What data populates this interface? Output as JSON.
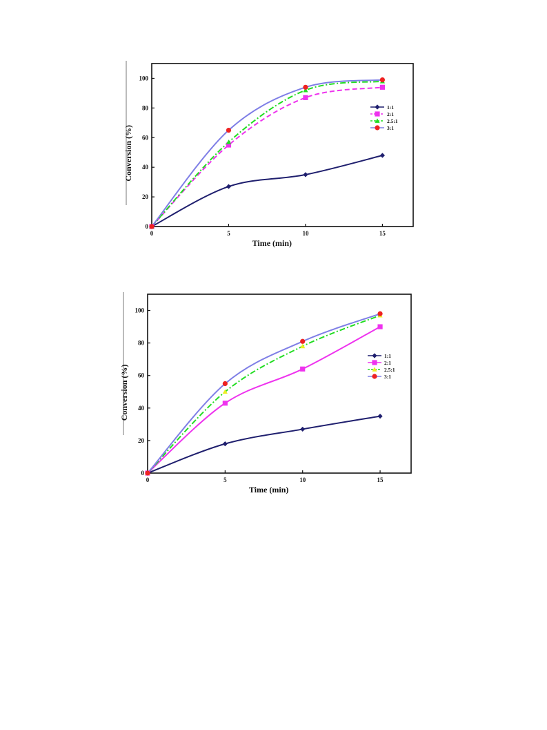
{
  "chart_data": [
    {
      "type": "line",
      "title": "",
      "xlabel": "Time (min)",
      "ylabel": "Conversion (%)",
      "x": [
        0,
        5,
        10,
        15
      ],
      "xlim": [
        0,
        17
      ],
      "ylim": [
        0,
        110
      ],
      "xticks": [
        "0",
        "5",
        "10",
        "15"
      ],
      "yticks": [
        "0",
        "20",
        "40",
        "60",
        "80",
        "100"
      ],
      "grid": false,
      "legend_position": "right",
      "series": [
        {
          "name": "1:1",
          "values": [
            0,
            27,
            35,
            48
          ],
          "color": "#1f1f6e",
          "marker": "diamond",
          "dash": "solid"
        },
        {
          "name": "2:1",
          "values": [
            0,
            55,
            87,
            94
          ],
          "color": "#ee33ee",
          "marker": "square",
          "dash": "dashed"
        },
        {
          "name": "2.5:1",
          "values": [
            0,
            57,
            92,
            98
          ],
          "color": "#22dd22",
          "marker": "triangle",
          "dash": "dashdot"
        },
        {
          "name": "3:1",
          "values": [
            0,
            65,
            94,
            99
          ],
          "color": "#7f7fe6",
          "marker": "circle",
          "marker_color": "#ee2222",
          "dash": "solid"
        }
      ]
    },
    {
      "type": "line",
      "title": "",
      "xlabel": "Time (min)",
      "ylabel": "Conversion (%)",
      "x": [
        0,
        5,
        10,
        15
      ],
      "xlim": [
        0,
        17
      ],
      "ylim": [
        0,
        110
      ],
      "xticks": [
        "0",
        "5",
        "10",
        "15"
      ],
      "yticks": [
        "0",
        "20",
        "40",
        "60",
        "80",
        "100"
      ],
      "grid": false,
      "legend_position": "right",
      "series": [
        {
          "name": "1:1",
          "values": [
            0,
            18,
            27,
            35
          ],
          "color": "#1f1f6e",
          "marker": "diamond",
          "dash": "solid"
        },
        {
          "name": "2:1",
          "values": [
            0,
            43,
            64,
            90
          ],
          "color": "#ee33ee",
          "marker": "square",
          "dash": "solid"
        },
        {
          "name": "2.5:1",
          "values": [
            0,
            50,
            78,
            97
          ],
          "color": "#22dd22",
          "marker": "triangle",
          "marker_color": "#eeee22",
          "dash": "dashdot"
        },
        {
          "name": "3:1",
          "values": [
            0,
            55,
            81,
            98
          ],
          "color": "#7f7fe6",
          "marker": "circle",
          "marker_color": "#ee2222",
          "dash": "solid"
        }
      ]
    }
  ]
}
